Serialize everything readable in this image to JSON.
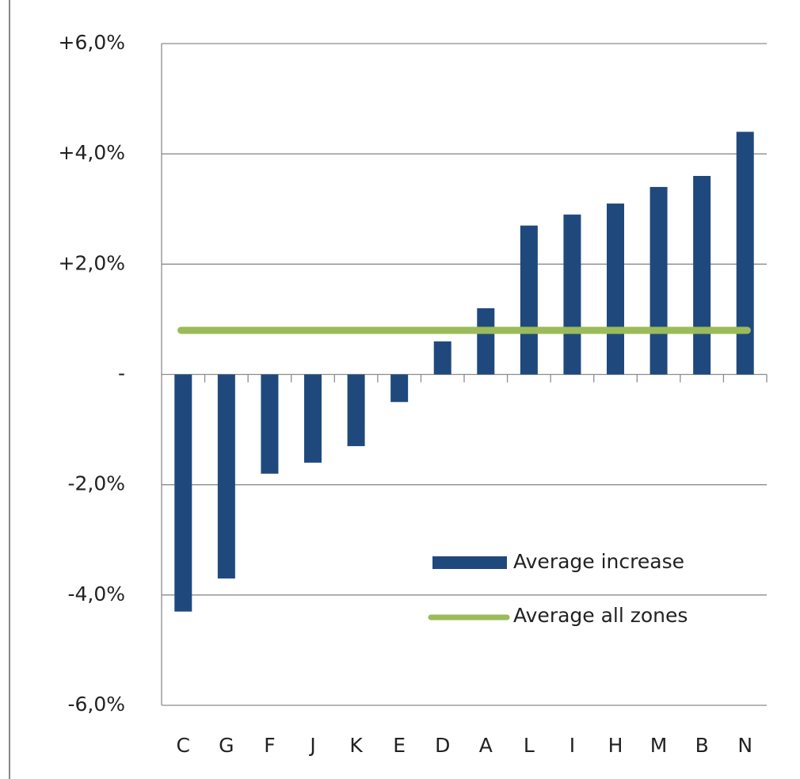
{
  "chart_data": {
    "type": "bar",
    "categories": [
      "C",
      "G",
      "F",
      "J",
      "K",
      "E",
      "D",
      "A",
      "L",
      "I",
      "H",
      "M",
      "B",
      "N"
    ],
    "series": [
      {
        "name": "Average increase",
        "color": "#1f497d",
        "values": [
          -4.3,
          -3.7,
          -1.8,
          -1.6,
          -1.3,
          -0.5,
          0.6,
          1.2,
          2.7,
          2.9,
          3.1,
          3.4,
          3.6,
          4.4
        ]
      }
    ],
    "reference_line": {
      "name": "Average all zones",
      "color": "#9bbb59",
      "value": 0.8
    },
    "ylim": [
      -6,
      6
    ],
    "yticks": [
      {
        "value": -6,
        "label": "-6,0%"
      },
      {
        "value": -4,
        "label": "-4,0%"
      },
      {
        "value": -2,
        "label": "-2,0%"
      },
      {
        "value": 0,
        "label": "-"
      },
      {
        "value": 2,
        "label": "+2,0%"
      },
      {
        "value": 4,
        "label": "+4,0%"
      },
      {
        "value": 6,
        "label": "+6,0%"
      }
    ],
    "grid": true
  }
}
